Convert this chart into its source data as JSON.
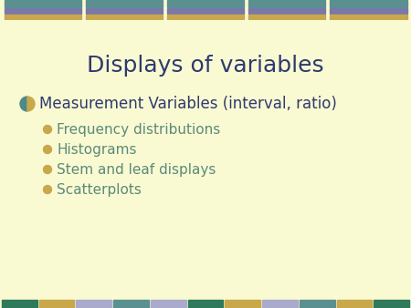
{
  "title": "Displays of variables",
  "title_color": "#2E3A6E",
  "title_fontsize": 18,
  "background_color": "#FAFAD2",
  "main_bullet_text": "Measurement Variables (interval, ratio)",
  "main_bullet_color": "#2E3A6E",
  "main_bullet_fontsize": 12,
  "sub_bullets": [
    "Frequency distributions",
    "Histograms",
    "Stem and leaf displays",
    "Scatterplots"
  ],
  "sub_bullet_color": "#5A8A7A",
  "sub_bullet_fontsize": 11,
  "bullet_dot_color": "#C8A84B",
  "header_n_tiles": 5,
  "header_stripe_top": "#5B9090",
  "header_stripe_mid": "#7878AA",
  "header_stripe_bot": "#C8A84B",
  "footer_colors": [
    "#2E7A5A",
    "#C8A84B",
    "#AAAACC",
    "#5B9090",
    "#AAAACC",
    "#2E7A5A",
    "#C8A84B",
    "#AAAACC",
    "#5B9090",
    "#C8A84B",
    "#2E7A5A"
  ],
  "globe_left_color": "#4A8A8A",
  "globe_right_color": "#C8A84B"
}
